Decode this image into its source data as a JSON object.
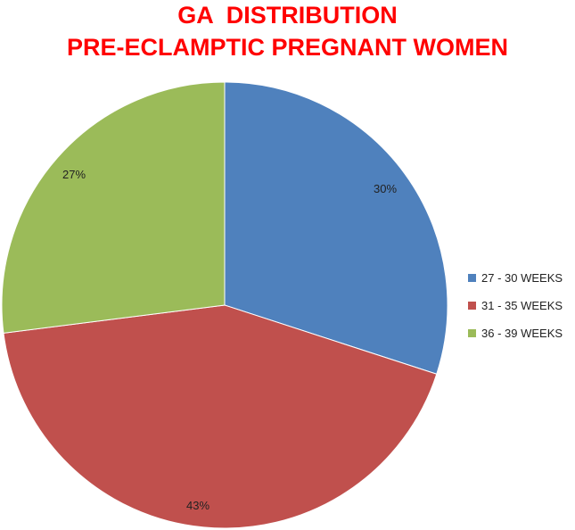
{
  "chart_data": {
    "type": "pie",
    "title": "GA  DISTRIBUTION",
    "subtitle": "PRE-ECLAMPTIC PREGNANT WOMEN",
    "categories": [
      "27 - 30 WEEKS",
      "31 - 35 WEEKS",
      "36 - 39 WEEKS"
    ],
    "values": [
      30,
      43,
      27
    ],
    "data_labels": [
      "30%",
      "43%",
      "27%"
    ],
    "colors": [
      "#4f81bd",
      "#c0504d",
      "#9bbb59"
    ],
    "legend_position": "right"
  }
}
